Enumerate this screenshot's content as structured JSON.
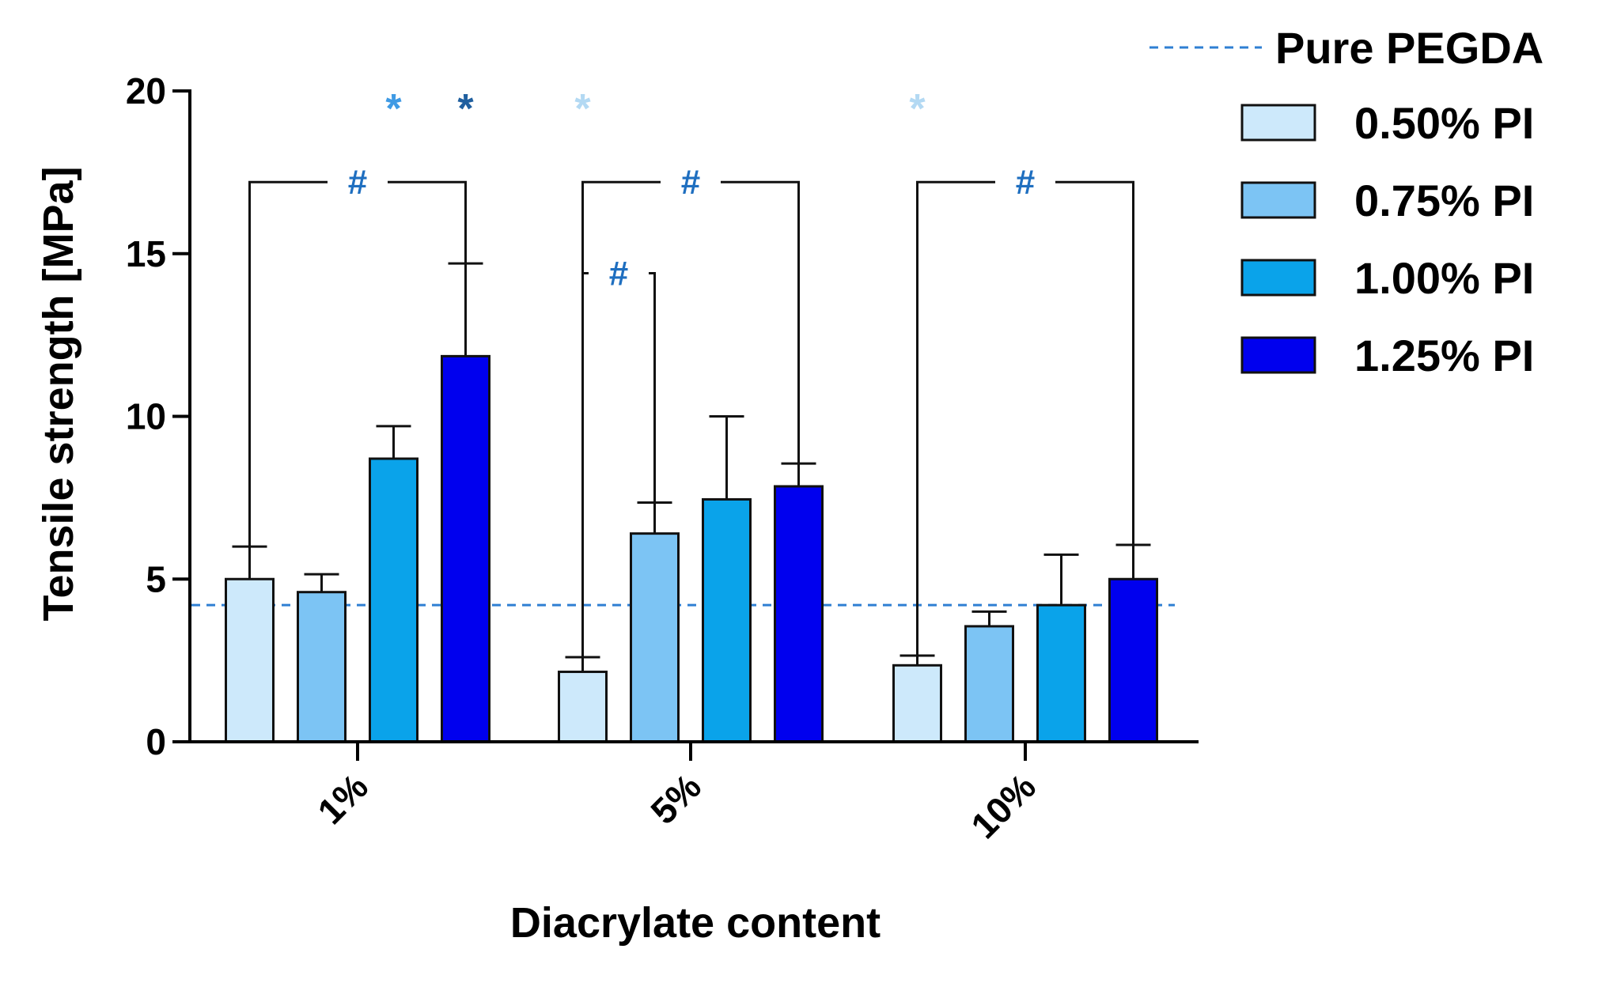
{
  "chart_data": {
    "type": "bar",
    "xlabel": "Diacrylate content",
    "ylabel": "Tensile strength [MPa]",
    "ylim": [
      0,
      20
    ],
    "yticks": [
      "0",
      "5",
      "10",
      "15",
      "20"
    ],
    "categories": [
      "1%",
      "5%",
      "10%"
    ],
    "series": [
      {
        "name": "0.50% PI",
        "color": "#cde9fb",
        "values": [
          5.0,
          2.15,
          2.35
        ],
        "errors": [
          1.0,
          0.45,
          0.3
        ]
      },
      {
        "name": "0.75% PI",
        "color": "#7cc4f4",
        "values": [
          4.6,
          6.4,
          3.55
        ],
        "errors": [
          0.55,
          0.95,
          0.45
        ]
      },
      {
        "name": "1.00% PI",
        "color": "#0aa3ea",
        "values": [
          8.7,
          7.45,
          4.2
        ],
        "errors": [
          1.0,
          2.55,
          1.55
        ]
      },
      {
        "name": "1.25% PI",
        "color": "#0000ee",
        "values": [
          11.85,
          7.85,
          5.0
        ],
        "errors": [
          2.85,
          0.7,
          1.05
        ]
      }
    ],
    "reference_line": {
      "name": "Pure PEGDA",
      "value": 4.2,
      "color": "#2f7fd3"
    },
    "legend": {
      "placement": "top-right"
    },
    "grid": false,
    "annotations": {
      "hash_symbol": "#",
      "hash_color": "#1f6fc0",
      "star_symbol": "*",
      "brackets": [
        {
          "category": 0,
          "from_series": 0,
          "to_series": 3,
          "level": 17.2
        },
        {
          "category": 1,
          "from_series": 0,
          "to_series": 3,
          "level": 17.2
        },
        {
          "category": 1,
          "from_series": 0,
          "to_series": 1,
          "level": 14.4
        },
        {
          "category": 2,
          "from_series": 0,
          "to_series": 3,
          "level": 17.2
        }
      ],
      "stars": [
        {
          "category": 0,
          "series": 2,
          "color": "#3f9ae4"
        },
        {
          "category": 0,
          "series": 3,
          "color": "#1f5f9f"
        },
        {
          "category": 1,
          "series": 0,
          "color": "#b3d9f3"
        },
        {
          "category": 2,
          "series": 0,
          "color": "#b3d9f3"
        }
      ]
    }
  }
}
